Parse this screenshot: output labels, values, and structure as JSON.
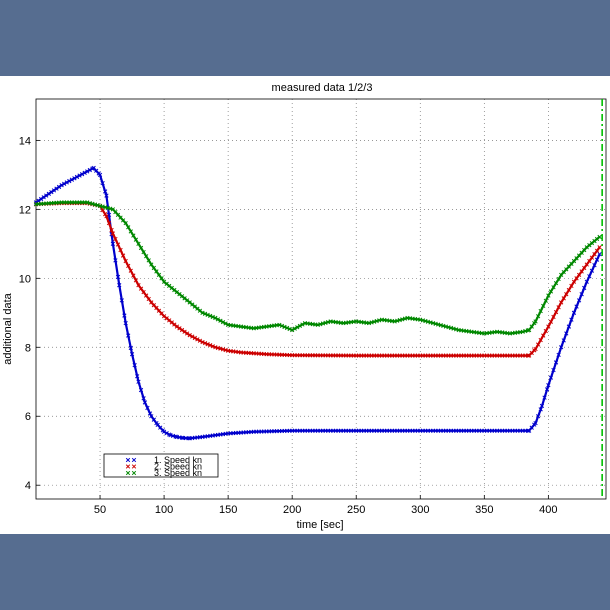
{
  "background_color": "#566d90",
  "chart_data": {
    "type": "line",
    "title": "measured data 1/2/3",
    "xlabel": "time [sec]",
    "ylabel": "additional data",
    "xlim": [
      0,
      445
    ],
    "ylim": [
      3.6,
      15.2
    ],
    "xticks": [
      50,
      100,
      150,
      200,
      250,
      300,
      350,
      400
    ],
    "yticks": [
      4,
      6,
      8,
      10,
      12,
      14
    ],
    "grid": true,
    "legend_position": "bottom-left",
    "vertical_marker": {
      "x": 442,
      "color": "#00c000",
      "style": "dash-dot"
    },
    "series": [
      {
        "name": "1. Speed  kn",
        "color": "#0000cc",
        "marker": "x",
        "points": [
          [
            0,
            12.2
          ],
          [
            10,
            12.45
          ],
          [
            20,
            12.7
          ],
          [
            30,
            12.9
          ],
          [
            40,
            13.1
          ],
          [
            45,
            13.2
          ],
          [
            50,
            13.0
          ],
          [
            55,
            12.4
          ],
          [
            60,
            11.0
          ],
          [
            65,
            9.8
          ],
          [
            70,
            8.7
          ],
          [
            75,
            7.8
          ],
          [
            80,
            7.0
          ],
          [
            85,
            6.4
          ],
          [
            90,
            6.0
          ],
          [
            95,
            5.75
          ],
          [
            100,
            5.55
          ],
          [
            105,
            5.45
          ],
          [
            110,
            5.4
          ],
          [
            115,
            5.37
          ],
          [
            120,
            5.36
          ],
          [
            130,
            5.4
          ],
          [
            140,
            5.45
          ],
          [
            150,
            5.5
          ],
          [
            170,
            5.55
          ],
          [
            200,
            5.58
          ],
          [
            250,
            5.58
          ],
          [
            300,
            5.58
          ],
          [
            350,
            5.58
          ],
          [
            385,
            5.58
          ],
          [
            390,
            5.8
          ],
          [
            395,
            6.3
          ],
          [
            400,
            6.9
          ],
          [
            410,
            8.0
          ],
          [
            420,
            9.0
          ],
          [
            430,
            9.9
          ],
          [
            440,
            10.7
          ]
        ]
      },
      {
        "name": "2. Speed  kn",
        "color": "#cc0000",
        "marker": "x",
        "points": [
          [
            0,
            12.15
          ],
          [
            20,
            12.18
          ],
          [
            40,
            12.18
          ],
          [
            50,
            12.1
          ],
          [
            55,
            11.8
          ],
          [
            60,
            11.3
          ],
          [
            70,
            10.5
          ],
          [
            80,
            9.8
          ],
          [
            90,
            9.3
          ],
          [
            100,
            8.9
          ],
          [
            110,
            8.6
          ],
          [
            120,
            8.35
          ],
          [
            130,
            8.15
          ],
          [
            140,
            8.0
          ],
          [
            150,
            7.9
          ],
          [
            160,
            7.85
          ],
          [
            180,
            7.8
          ],
          [
            200,
            7.77
          ],
          [
            250,
            7.76
          ],
          [
            300,
            7.76
          ],
          [
            350,
            7.76
          ],
          [
            385,
            7.76
          ],
          [
            390,
            7.95
          ],
          [
            400,
            8.6
          ],
          [
            410,
            9.3
          ],
          [
            420,
            9.9
          ],
          [
            430,
            10.4
          ],
          [
            440,
            10.9
          ]
        ]
      },
      {
        "name": "3. Speed  kn",
        "color": "#008800",
        "marker": "x",
        "points": [
          [
            0,
            12.15
          ],
          [
            20,
            12.2
          ],
          [
            40,
            12.2
          ],
          [
            50,
            12.1
          ],
          [
            60,
            12.0
          ],
          [
            70,
            11.6
          ],
          [
            80,
            11.0
          ],
          [
            90,
            10.4
          ],
          [
            100,
            9.9
          ],
          [
            110,
            9.6
          ],
          [
            120,
            9.3
          ],
          [
            130,
            9.0
          ],
          [
            140,
            8.85
          ],
          [
            150,
            8.65
          ],
          [
            160,
            8.6
          ],
          [
            170,
            8.55
          ],
          [
            180,
            8.6
          ],
          [
            190,
            8.65
          ],
          [
            200,
            8.5
          ],
          [
            210,
            8.7
          ],
          [
            220,
            8.65
          ],
          [
            230,
            8.75
          ],
          [
            240,
            8.7
          ],
          [
            250,
            8.75
          ],
          [
            260,
            8.7
          ],
          [
            270,
            8.8
          ],
          [
            280,
            8.75
          ],
          [
            290,
            8.85
          ],
          [
            300,
            8.8
          ],
          [
            310,
            8.7
          ],
          [
            320,
            8.6
          ],
          [
            330,
            8.5
          ],
          [
            340,
            8.45
          ],
          [
            350,
            8.4
          ],
          [
            360,
            8.45
          ],
          [
            370,
            8.4
          ],
          [
            380,
            8.45
          ],
          [
            385,
            8.5
          ],
          [
            390,
            8.75
          ],
          [
            400,
            9.5
          ],
          [
            410,
            10.1
          ],
          [
            420,
            10.5
          ],
          [
            430,
            10.9
          ],
          [
            440,
            11.2
          ]
        ]
      }
    ]
  }
}
